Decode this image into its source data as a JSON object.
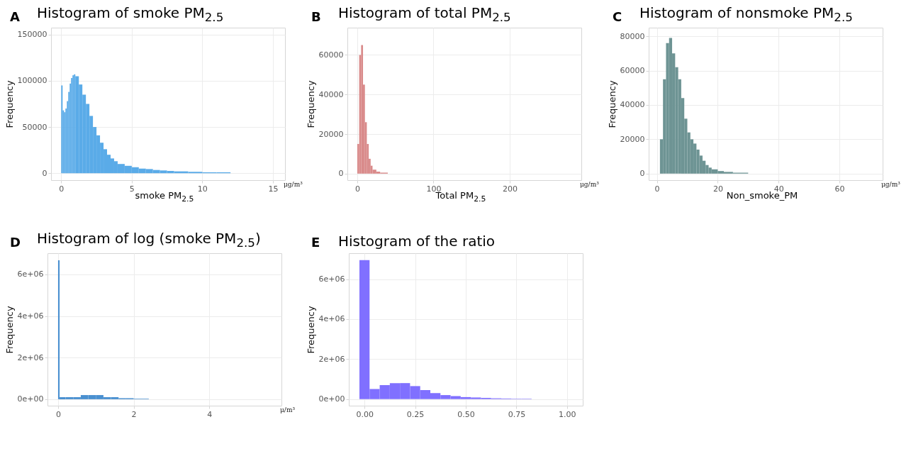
{
  "chart_data": [
    {
      "type": "histogram",
      "title": "Histogram of smoke PM$_{2.5}$",
      "xlabel": "smoke PM$_{2.5}$",
      "ylabel": "Frequency",
      "annotations": [
        "A",
        "μg/m³"
      ],
      "color": "#5aabe8",
      "grid": true,
      "bins": [
        0,
        0.1,
        0.2,
        0.3,
        0.4,
        0.5,
        0.6,
        0.7,
        0.8,
        0.9,
        1.0,
        1.25,
        1.5,
        1.75,
        2,
        2.25,
        2.5,
        2.75,
        3,
        3.25,
        3.5,
        3.75,
        4,
        4.5,
        5,
        5.5,
        6,
        6.5,
        7,
        7.5,
        8,
        9,
        10,
        11,
        12
      ],
      "values": [
        95000,
        68000,
        66000,
        70000,
        78000,
        88000,
        97000,
        103000,
        106000,
        107000,
        105000,
        96000,
        85000,
        75000,
        62000,
        50000,
        41000,
        33000,
        26000,
        20000,
        16000,
        13000,
        10000,
        8000,
        6500,
        5000,
        4500,
        3500,
        3000,
        2500,
        2000,
        1500,
        1000,
        1000
      ],
      "xlim": [
        -0.72,
        15.86
      ],
      "xticks": [
        0,
        5,
        10,
        15
      ],
      "ylim": [
        -7500,
        157500
      ],
      "yticks": [
        0,
        50000,
        100000,
        150000
      ]
    },
    {
      "type": "histogram",
      "title": "Histogram of total PM$_{2.5}$",
      "xlabel": "Total PM$_{2.5}$",
      "ylabel": "Frequency",
      "annotations": [
        "B",
        "μg/m³"
      ],
      "color": "#d98a8a",
      "grid": true,
      "bins": [
        0,
        2.5,
        5,
        7.5,
        10,
        12.5,
        15,
        17.5,
        20,
        25,
        30,
        40
      ],
      "values": [
        15000,
        60000,
        65000,
        45000,
        26000,
        15000,
        7500,
        4000,
        2000,
        1000,
        500
      ],
      "xlim": [
        -13,
        294
      ],
      "xticks": [
        0,
        100,
        200
      ],
      "ylim": [
        -3300,
        73800
      ],
      "yticks": [
        0,
        20000,
        40000,
        60000
      ]
    },
    {
      "type": "histogram",
      "title": "Histogram of nonsmoke PM$_{2.5}$",
      "xlabel": "Non_smoke_PM",
      "ylabel": "Frequency",
      "annotations": [
        "C",
        "μg/m³"
      ],
      "color": "#6e9494",
      "grid": true,
      "bins": [
        1,
        2,
        3,
        4,
        5,
        6,
        7,
        8,
        9,
        10,
        11,
        12,
        13,
        14,
        15,
        16,
        17,
        18,
        20,
        22,
        25,
        30
      ],
      "values": [
        20000,
        55000,
        76000,
        79000,
        70000,
        62000,
        55000,
        44000,
        32000,
        24000,
        20000,
        17500,
        14000,
        10500,
        7500,
        5000,
        3500,
        2500,
        1500,
        1000,
        500
      ],
      "xlim": [
        -2.7,
        74.2
      ],
      "xticks": [
        0,
        20,
        40,
        60
      ],
      "ylim": [
        -3800,
        85000
      ],
      "yticks": [
        0,
        20000,
        40000,
        60000,
        80000
      ]
    },
    {
      "type": "histogram",
      "title": "Histogram of log (smoke PM$_{2.5}$)",
      "ylabel": "Frequency",
      "annotations": [
        "D",
        "μ/m³"
      ],
      "color": "#4a90d0",
      "grid": true,
      "bins": [
        0,
        0.04,
        0.2,
        0.4,
        0.6,
        0.8,
        1.0,
        1.2,
        1.4,
        1.6,
        1.8,
        2.0,
        2.4
      ],
      "values": [
        6680000,
        100000,
        100000,
        100000,
        200000,
        200000,
        200000,
        100000,
        100000,
        50000,
        50000,
        20000
      ],
      "xlim": [
        -0.28,
        5.91
      ],
      "xticks": [
        0,
        2,
        4
      ],
      "ylim": [
        -310000,
        7020000
      ],
      "yticks": [
        {
          "value": 0,
          "label": "0e+00"
        },
        {
          "value": 2000000,
          "label": "2e+06"
        },
        {
          "value": 4000000,
          "label": "4e+06"
        },
        {
          "value": 6000000,
          "label": "6e+06"
        }
      ]
    },
    {
      "type": "histogram",
      "title": "Histogram of the ratio",
      "ylabel": "Frequency",
      "annotations": [
        "E"
      ],
      "color": "#8070ff",
      "grid": true,
      "bins": [
        -0.025,
        0.025,
        0.075,
        0.125,
        0.175,
        0.225,
        0.275,
        0.325,
        0.375,
        0.425,
        0.475,
        0.525,
        0.575,
        0.625,
        0.675,
        0.725,
        0.775,
        0.825
      ],
      "values": [
        6950000,
        500000,
        700000,
        800000,
        800000,
        650000,
        450000,
        300000,
        200000,
        150000,
        100000,
        80000,
        60000,
        40000,
        30000,
        20000,
        20000
      ],
      "xlim": [
        -0.0775,
        1.0775
      ],
      "xticks": [
        {
          "value": 0,
          "label": "0.00"
        },
        {
          "value": 0.25,
          "label": "0.25"
        },
        {
          "value": 0.5,
          "label": "0.50"
        },
        {
          "value": 0.75,
          "label": "0.75"
        },
        {
          "value": 1,
          "label": "1.00"
        }
      ],
      "ylim": [
        -330000,
        7300000
      ],
      "yticks": [
        {
          "value": 0,
          "label": "0e+00"
        },
        {
          "value": 2000000,
          "label": "2e+06"
        },
        {
          "value": 4000000,
          "label": "4e+06"
        },
        {
          "value": 6000000,
          "label": "6e+06"
        }
      ]
    }
  ]
}
